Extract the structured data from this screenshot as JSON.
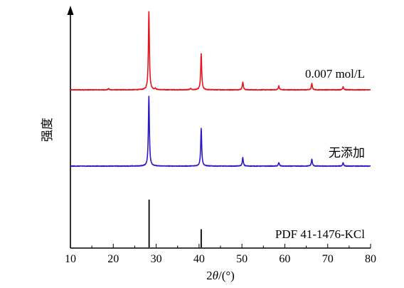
{
  "chart_data": {
    "type": "line",
    "xlabel": "2θ/(°)",
    "ylabel": "强度",
    "xlim": [
      10,
      80
    ],
    "xticks": [
      10,
      20,
      30,
      40,
      50,
      60,
      70,
      80
    ],
    "x_tick_labels": [
      "10",
      "20",
      "30",
      "40",
      "50",
      "60",
      "70",
      "80"
    ],
    "grid": false,
    "series": [
      {
        "name": "0.007 mol/L",
        "color": "#e8141c",
        "peaks": [
          {
            "x": 18.9,
            "y": 0.015
          },
          {
            "x": 28.3,
            "y": 1.0
          },
          {
            "x": 29.8,
            "y": 0.015
          },
          {
            "x": 38.0,
            "y": 0.02
          },
          {
            "x": 40.5,
            "y": 0.46
          },
          {
            "x": 50.2,
            "y": 0.1
          },
          {
            "x": 58.6,
            "y": 0.05
          },
          {
            "x": 66.3,
            "y": 0.08
          },
          {
            "x": 73.6,
            "y": 0.04
          }
        ]
      },
      {
        "name": "无添加",
        "color": "#2b18c9",
        "peaks": [
          {
            "x": 28.3,
            "y": 1.0
          },
          {
            "x": 40.5,
            "y": 0.54
          },
          {
            "x": 50.2,
            "y": 0.12
          },
          {
            "x": 58.6,
            "y": 0.05
          },
          {
            "x": 66.3,
            "y": 0.1
          },
          {
            "x": 73.6,
            "y": 0.05
          }
        ]
      },
      {
        "name": "PDF 41-1476-KCl",
        "color": "#000000",
        "peaks": [
          {
            "x": 28.35,
            "y": 1.0
          },
          {
            "x": 40.5,
            "y": 0.38
          }
        ]
      }
    ]
  }
}
